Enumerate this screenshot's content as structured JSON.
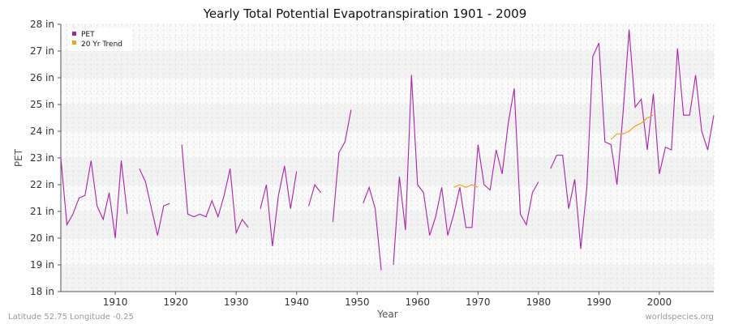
{
  "chart_data": {
    "type": "line",
    "title": "Yearly Total Potential Evapotranspiration 1901 - 2009",
    "xlabel": "Year",
    "ylabel": "PET",
    "xlim": [
      1901,
      2009
    ],
    "ylim": [
      18,
      28
    ],
    "y_unit": "in",
    "x_ticks": [
      1910,
      1920,
      1930,
      1940,
      1950,
      1960,
      1970,
      1980,
      1990,
      2000
    ],
    "y_ticks": [
      18,
      19,
      20,
      21,
      22,
      23,
      24,
      25,
      26,
      27,
      28
    ],
    "y_tick_labels": [
      "18 in",
      "19 in",
      "20 in",
      "21 in",
      "22 in",
      "23 in",
      "24 in",
      "25 in",
      "26 in",
      "27 in",
      "28 in"
    ],
    "grid": true,
    "legend_position": "top-left",
    "series": [
      {
        "name": "PET",
        "color": "#aa22aa",
        "x": [
          1901,
          1902,
          1903,
          1904,
          1905,
          1906,
          1907,
          1908,
          1909,
          1910,
          1911,
          1912,
          1913,
          1914,
          1915,
          1916,
          1917,
          1918,
          1919,
          1920,
          1921,
          1922,
          1923,
          1924,
          1925,
          1926,
          1927,
          1928,
          1929,
          1930,
          1931,
          1932,
          1933,
          1934,
          1935,
          1936,
          1937,
          1938,
          1939,
          1940,
          1941,
          1942,
          1943,
          1944,
          1945,
          1946,
          1947,
          1948,
          1949,
          1950,
          1951,
          1952,
          1953,
          1954,
          1955,
          1956,
          1957,
          1958,
          1959,
          1960,
          1961,
          1962,
          1963,
          1964,
          1965,
          1966,
          1967,
          1968,
          1969,
          1970,
          1971,
          1972,
          1973,
          1974,
          1975,
          1976,
          1977,
          1978,
          1979,
          1980,
          1981,
          1982,
          1983,
          1984,
          1985,
          1986,
          1987,
          1988,
          1989,
          1990,
          1991,
          1992,
          1993,
          1994,
          1995,
          1996,
          1997,
          1998,
          1999,
          2000,
          2001,
          2002,
          2003,
          2004,
          2005,
          2006,
          2007,
          2008,
          2009
        ],
        "values": [
          23.0,
          20.5,
          20.9,
          21.5,
          21.6,
          22.9,
          21.2,
          20.7,
          21.7,
          20.0,
          22.9,
          20.9,
          null,
          22.6,
          22.1,
          21.1,
          20.1,
          21.2,
          21.3,
          null,
          23.5,
          20.9,
          20.8,
          20.9,
          20.8,
          21.4,
          20.8,
          21.6,
          22.6,
          20.2,
          20.7,
          20.4,
          null,
          21.1,
          22.0,
          19.7,
          21.6,
          22.7,
          21.1,
          22.5,
          null,
          21.2,
          22.0,
          21.7,
          null,
          20.6,
          23.2,
          23.6,
          24.8,
          null,
          21.3,
          21.9,
          21.1,
          18.8,
          null,
          19.0,
          22.3,
          20.3,
          26.1,
          22.0,
          21.7,
          20.1,
          20.8,
          21.9,
          20.1,
          20.9,
          21.9,
          20.4,
          20.4,
          23.5,
          22.0,
          21.8,
          23.3,
          22.4,
          24.3,
          25.6,
          20.9,
          20.5,
          21.7,
          22.1,
          null,
          22.6,
          23.1,
          23.1,
          21.1,
          22.2,
          19.6,
          21.9,
          26.8,
          27.3,
          23.6,
          23.5,
          22.0,
          24.7,
          27.8,
          24.9,
          25.2,
          23.3,
          25.4,
          22.4,
          23.4,
          23.3,
          27.1,
          24.6,
          24.6,
          26.1,
          24.0,
          23.3,
          24.6
        ]
      },
      {
        "name": "20 Yr Trend",
        "color": "#f5a020",
        "x": [
          1966,
          1967,
          1968,
          1969,
          1970,
          1992,
          1993,
          1994,
          1995,
          1996,
          1997,
          1998,
          1999
        ],
        "segments": [
          {
            "x": [
              1966,
              1967,
              1968,
              1969,
              1970
            ],
            "values": [
              21.9,
              22.0,
              21.9,
              22.0,
              21.9
            ]
          },
          {
            "x": [
              1992,
              1993,
              1994,
              1995,
              1996,
              1997,
              1998,
              1999
            ],
            "values": [
              23.7,
              23.9,
              23.9,
              24.0,
              24.2,
              24.3,
              24.5,
              24.6
            ]
          }
        ]
      }
    ]
  },
  "footer": {
    "left": "Latitude 52.75 Longitude -0.25",
    "right": "worldspecies.org"
  }
}
